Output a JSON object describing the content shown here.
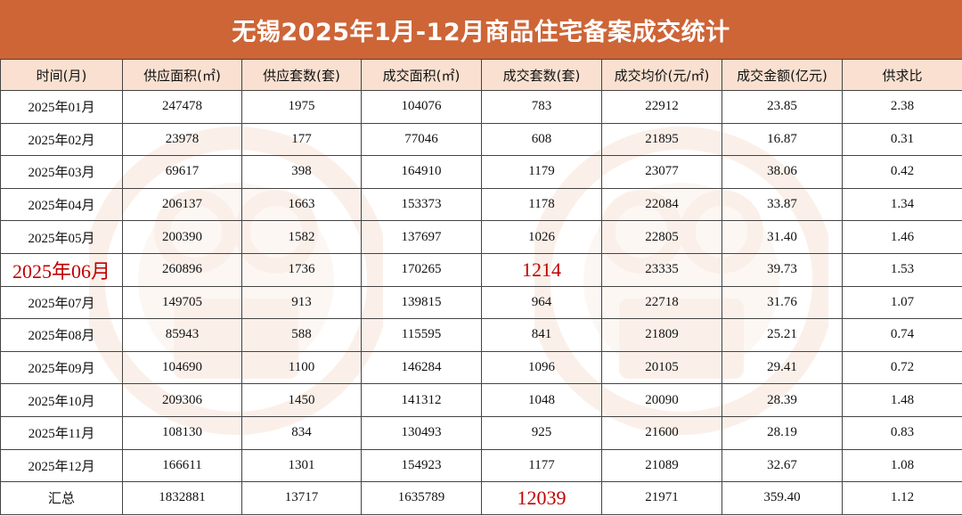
{
  "title": "无锡2025年1月-12月商品住宅备案成交统计",
  "colors": {
    "title_bg": "#cd6537",
    "header_bg": "#fae0d0",
    "highlight": "#c00000",
    "watermark": "#e8915a"
  },
  "watermark_icon": "watermark-logo-icon",
  "headers": [
    "时间(月)",
    "供应面积(㎡)",
    "供应套数(套)",
    "成交面积(㎡)",
    "成交套数(套)",
    "成交均价(元/㎡)",
    "成交金额(亿元)",
    "供求比"
  ],
  "rows": [
    [
      "2025年01月",
      "247478",
      "1975",
      "104076",
      "783",
      "22912",
      "23.85",
      "2.38"
    ],
    [
      "2025年02月",
      "23978",
      "177",
      "77046",
      "608",
      "21895",
      "16.87",
      "0.31"
    ],
    [
      "2025年03月",
      "69617",
      "398",
      "164910",
      "1179",
      "23077",
      "38.06",
      "0.42"
    ],
    [
      "2025年04月",
      "206137",
      "1663",
      "153373",
      "1178",
      "22084",
      "33.87",
      "1.34"
    ],
    [
      "2025年05月",
      "200390",
      "1582",
      "137697",
      "1026",
      "22805",
      "31.40",
      "1.46"
    ],
    [
      "2025年06月",
      "260896",
      "1736",
      "170265",
      "1214",
      "23335",
      "39.73",
      "1.53"
    ],
    [
      "2025年07月",
      "149705",
      "913",
      "139815",
      "964",
      "22718",
      "31.76",
      "1.07"
    ],
    [
      "2025年08月",
      "85943",
      "588",
      "115595",
      "841",
      "21809",
      "25.21",
      "0.74"
    ],
    [
      "2025年09月",
      "104690",
      "1100",
      "146284",
      "1096",
      "20105",
      "29.41",
      "0.72"
    ],
    [
      "2025年10月",
      "209306",
      "1450",
      "141312",
      "1048",
      "20090",
      "28.39",
      "1.48"
    ],
    [
      "2025年11月",
      "108130",
      "834",
      "130493",
      "925",
      "21600",
      "28.19",
      "0.83"
    ],
    [
      "2025年12月",
      "166611",
      "1301",
      "154923",
      "1177",
      "21089",
      "32.67",
      "1.08"
    ]
  ],
  "total": [
    "汇总",
    "1832881",
    "13717",
    "1635789",
    "12039",
    "21971",
    "359.40",
    "1.12"
  ]
}
